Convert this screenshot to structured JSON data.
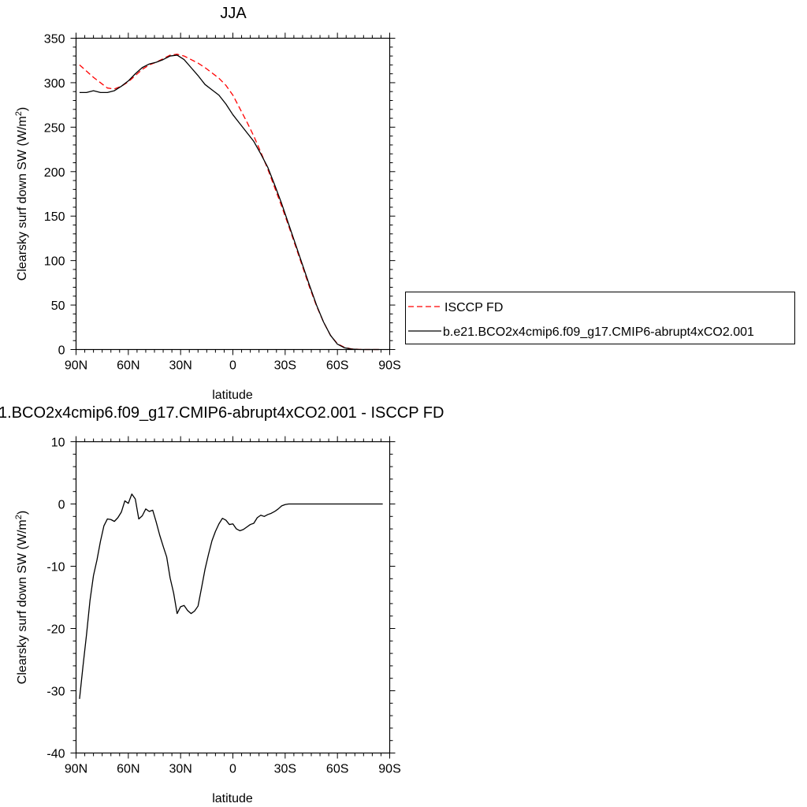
{
  "chart_data": [
    {
      "type": "line",
      "title": "JJA",
      "xlabel": "latitude",
      "ylabel": "Clearsky surf down SW (W/m",
      "ylabel_sup": "2",
      "ylabel_end": ")",
      "xlim": [
        90,
        -90
      ],
      "ylim": [
        0,
        350
      ],
      "x_ticks": [
        90,
        60,
        30,
        0,
        -30,
        -60,
        -90
      ],
      "x_tick_labels": [
        "90N",
        "60N",
        "30N",
        "0",
        "30S",
        "60S",
        "90S"
      ],
      "y_ticks": [
        0,
        50,
        100,
        150,
        200,
        250,
        300,
        350
      ],
      "y_tick_labels": [
        "0",
        "50",
        "100",
        "150",
        "200",
        "250",
        "300",
        "350"
      ],
      "legend_position": "right",
      "series": [
        {
          "name": "ISCCP FD",
          "color": "#ff0000",
          "dash": "dashed",
          "x": [
            88,
            84,
            80,
            76,
            72,
            68,
            64,
            60,
            56,
            52,
            48,
            44,
            40,
            36,
            32,
            28,
            24,
            20,
            16,
            12,
            8,
            4,
            0,
            -4,
            -8,
            -12,
            -16,
            -20,
            -24,
            -28,
            -32,
            -36,
            -40,
            -44,
            -48,
            -52,
            -56,
            -60,
            -64,
            -68,
            -72,
            -76,
            -80,
            -84
          ],
          "y": [
            320,
            313,
            306,
            300,
            294,
            293,
            296,
            301,
            308,
            315,
            320,
            323,
            327,
            331,
            332,
            330,
            326,
            322,
            317,
            311,
            305,
            297,
            286,
            271,
            256,
            240,
            222,
            203,
            182,
            161,
            139,
            116,
            93,
            70,
            49,
            31,
            16,
            6.5,
            2.5,
            0.7,
            0.2,
            0,
            0,
            0
          ]
        },
        {
          "name": "b.e21.BCO2x4cmip6.f09_g17.CMIP6-abrupt4xCO2.001",
          "color": "#000000",
          "dash": "solid",
          "x": [
            88,
            84,
            80,
            76,
            72,
            68,
            64,
            60,
            56,
            52,
            48,
            44,
            40,
            36,
            32,
            28,
            24,
            20,
            16,
            12,
            8,
            4,
            0,
            -4,
            -8,
            -12,
            -16,
            -20,
            -24,
            -28,
            -32,
            -36,
            -40,
            -44,
            -48,
            -52,
            -56,
            -60,
            -64,
            -68,
            -72,
            -76,
            -80,
            -84
          ],
          "y": [
            289,
            289,
            291,
            289,
            289,
            291,
            296,
            302,
            310,
            317,
            321,
            323,
            326,
            330,
            331,
            326,
            317,
            308,
            298,
            292,
            286,
            276,
            264,
            254,
            244,
            234,
            220,
            205,
            185,
            164,
            141,
            118,
            95,
            72,
            50,
            31,
            16,
            6,
            2,
            0.5,
            0.1,
            0,
            0,
            0
          ]
        }
      ]
    },
    {
      "type": "line",
      "title": "1.BCO2x4cmip6.f09_g17.CMIP6-abrupt4xCO2.001 - ISCCP FD",
      "xlabel": "latitude",
      "ylabel": "Clearsky surf down SW (W/m",
      "ylabel_sup": "2",
      "ylabel_end": ")",
      "xlim": [
        90,
        -90
      ],
      "ylim": [
        -40,
        10
      ],
      "x_ticks": [
        90,
        60,
        30,
        0,
        -30,
        -60,
        -90
      ],
      "x_tick_labels": [
        "90N",
        "60N",
        "30N",
        "0",
        "30S",
        "60S",
        "90S"
      ],
      "y_ticks": [
        -40,
        -30,
        -20,
        -10,
        0,
        10
      ],
      "y_tick_labels": [
        "-40",
        "-30",
        "-20",
        "-10",
        "0",
        "10"
      ],
      "series": [
        {
          "color": "#000000",
          "dash": "solid",
          "x": [
            88,
            86,
            84,
            82,
            80,
            78,
            76,
            74,
            72,
            70,
            68,
            66,
            64,
            62,
            60,
            58,
            56,
            54,
            52,
            50,
            48,
            46,
            44,
            42,
            40,
            38,
            36,
            34,
            32,
            30,
            28,
            26,
            24,
            22,
            20,
            18,
            16,
            14,
            12,
            10,
            8,
            6,
            4,
            2,
            0,
            -2,
            -4,
            -6,
            -8,
            -10,
            -12,
            -14,
            -16,
            -18,
            -20,
            -22,
            -24,
            -26,
            -28,
            -30,
            -32,
            -34,
            -36,
            -38,
            -40,
            -42,
            -44,
            -46,
            -48,
            -50,
            -52,
            -54,
            -56,
            -58,
            -60,
            -62,
            -64,
            -66,
            -68,
            -70,
            -72,
            -74,
            -76,
            -78,
            -80,
            -82,
            -84,
            -86
          ],
          "y": [
            -31.3,
            -26,
            -21,
            -15.5,
            -11.5,
            -9,
            -6,
            -3.5,
            -2.4,
            -2.5,
            -2.8,
            -2.2,
            -1.3,
            0.5,
            0.1,
            1.6,
            0.8,
            -2.4,
            -1.9,
            -0.8,
            -1.2,
            -1,
            -2.9,
            -5,
            -6.8,
            -8.5,
            -11.9,
            -14.3,
            -17.6,
            -16.5,
            -16.3,
            -17.1,
            -17.6,
            -17.2,
            -16.4,
            -13.5,
            -10.5,
            -8.1,
            -5.9,
            -4.4,
            -3.2,
            -2.3,
            -2.6,
            -3.3,
            -3.2,
            -4,
            -4.3,
            -4.1,
            -3.7,
            -3.3,
            -3.1,
            -2.2,
            -1.8,
            -2,
            -1.7,
            -1.5,
            -1.2,
            -0.8,
            -0.3,
            -0.1,
            0,
            0,
            0,
            0,
            0,
            0,
            0,
            0,
            0,
            0,
            0,
            0,
            0,
            0,
            0,
            0,
            0,
            0,
            0,
            0,
            0,
            0,
            0,
            0,
            0,
            0,
            0,
            0
          ]
        }
      ]
    }
  ]
}
